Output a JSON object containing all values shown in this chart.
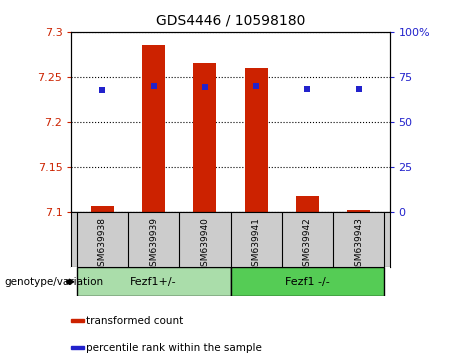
{
  "title": "GDS4446 / 10598180",
  "categories": [
    "GSM639938",
    "GSM639939",
    "GSM639940",
    "GSM639941",
    "GSM639942",
    "GSM639943"
  ],
  "transformed_count": [
    7.107,
    7.285,
    7.265,
    7.26,
    7.118,
    7.103
  ],
  "percentile_rank": [
    68.0,
    70.0,
    69.5,
    70.0,
    68.5,
    68.5
  ],
  "ylim_left": [
    7.1,
    7.3
  ],
  "ylim_right": [
    0,
    100
  ],
  "yticks_left": [
    7.1,
    7.15,
    7.2,
    7.25,
    7.3
  ],
  "yticks_right": [
    0,
    25,
    50,
    75,
    100
  ],
  "bar_color": "#cc2200",
  "dot_color": "#2222cc",
  "bar_bottom": 7.1,
  "groups": [
    {
      "label": "Fezf1+/-",
      "indices": [
        0,
        1,
        2
      ],
      "color": "#aaddaa"
    },
    {
      "label": "Fezf1 -/-",
      "indices": [
        3,
        4,
        5
      ],
      "color": "#55cc55"
    }
  ],
  "group_label": "genotype/variation",
  "legend_items": [
    {
      "label": "transformed count",
      "color": "#cc2200"
    },
    {
      "label": "percentile rank within the sample",
      "color": "#2222cc"
    }
  ],
  "tick_color_left": "#cc2200",
  "tick_color_right": "#2222cc",
  "cat_bg": "#cccccc",
  "bg_color": "#ffffff",
  "bar_width": 0.45,
  "figsize": [
    4.61,
    3.54
  ],
  "dpi": 100
}
